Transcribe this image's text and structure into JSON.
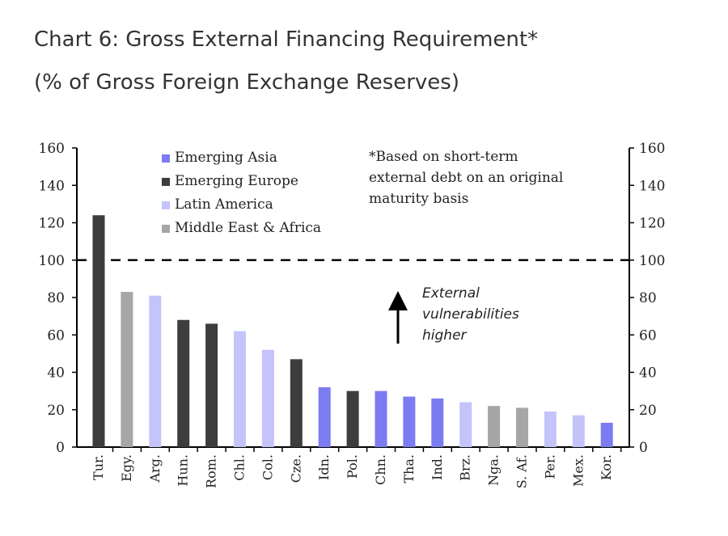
{
  "header": {
    "title": "Chart 6: Gross External Financing Requirement*",
    "subtitle": "(% of Gross Foreign Exchange Reserves)"
  },
  "chart_data": {
    "type": "bar",
    "categories": [
      "Tur.",
      "Egy.",
      "Arg.",
      "Hun.",
      "Rom.",
      "Chl.",
      "Col.",
      "Cze.",
      "Idn.",
      "Pol.",
      "Chn.",
      "Tha.",
      "Ind.",
      "Brz.",
      "Nga.",
      "S. Af.",
      "Per.",
      "Mex.",
      "Kor."
    ],
    "values": [
      124,
      83,
      81,
      68,
      66,
      62,
      52,
      47,
      32,
      30,
      30,
      27,
      26,
      24,
      22,
      21,
      19,
      17,
      13
    ],
    "groups": [
      "Emerging Europe",
      "Middle East & Africa",
      "Latin America",
      "Emerging Europe",
      "Emerging Europe",
      "Latin America",
      "Latin America",
      "Emerging Europe",
      "Emerging Asia",
      "Emerging Europe",
      "Emerging Asia",
      "Emerging Asia",
      "Emerging Asia",
      "Latin America",
      "Middle East & Africa",
      "Middle East & Africa",
      "Latin America",
      "Latin America",
      "Emerging Asia"
    ],
    "legend": [
      {
        "name": "Emerging Asia",
        "color": "#7b7bf2"
      },
      {
        "name": "Emerging Europe",
        "color": "#3d3d3d"
      },
      {
        "name": "Latin America",
        "color": "#c4c4fa"
      },
      {
        "name": "Middle East & Africa",
        "color": "#a6a6a6"
      }
    ],
    "legend_placement": "top-left",
    "ylim": [
      0,
      160
    ],
    "yticks": [
      "0",
      "20",
      "40",
      "60",
      "80",
      "100",
      "120",
      "140",
      "160"
    ],
    "reference_line": 100,
    "note": [
      "*Based on short-term",
      "external debt on an original",
      "maturity basis"
    ],
    "annotation": [
      "External",
      "vulnerabilities",
      "higher"
    ],
    "grid": false
  }
}
